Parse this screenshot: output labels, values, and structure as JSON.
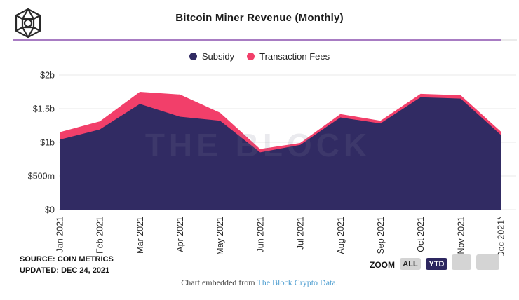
{
  "header": {
    "title": "Bitcoin Miner Revenue (Monthly)"
  },
  "legend": {
    "items": [
      {
        "label": "Subsidy",
        "color": "#312b63"
      },
      {
        "label": "Transaction Fees",
        "color": "#f23f6a"
      }
    ]
  },
  "chart_data": {
    "type": "area",
    "stacked": true,
    "title": "Bitcoin Miner Revenue (Monthly)",
    "x": [
      "Jan 2021",
      "Feb 2021",
      "Mar 2021",
      "Apr 2021",
      "May 2021",
      "Jun 2021",
      "Jul 2021",
      "Aug 2021",
      "Sep 2021",
      "Oct 2021",
      "Nov 2021",
      "Dec 2021*"
    ],
    "series": [
      {
        "name": "Subsidy",
        "color": "#312b63",
        "values_usd_billions": [
          1.04,
          1.19,
          1.57,
          1.38,
          1.32,
          0.85,
          0.96,
          1.37,
          1.28,
          1.67,
          1.65,
          1.11
        ]
      },
      {
        "name": "Transaction Fees",
        "color": "#f23f6a",
        "values_usd_billions": [
          0.11,
          0.12,
          0.18,
          0.33,
          0.12,
          0.05,
          0.03,
          0.05,
          0.04,
          0.05,
          0.05,
          0.05
        ]
      }
    ],
    "ylabel": "",
    "xlabel": "",
    "ylim": [
      0,
      2
    ],
    "yticks": [
      {
        "value": 2.0,
        "label": "$2b"
      },
      {
        "value": 1.5,
        "label": "$1.5b"
      },
      {
        "value": 1.0,
        "label": "$1b"
      },
      {
        "value": 0.5,
        "label": "$500m"
      },
      {
        "value": 0.0,
        "label": "$0"
      }
    ],
    "grid": true,
    "legend_position": "top",
    "watermark": "THE BLOCK"
  },
  "source": {
    "line1": "SOURCE: COIN METRICS",
    "line2": "UPDATED: DEC 24, 2021"
  },
  "zoom_controls": {
    "label": "ZOOM",
    "buttons": [
      {
        "label": "ALL",
        "active": false
      },
      {
        "label": "YTD",
        "active": true
      },
      {
        "label": "",
        "active": false
      },
      {
        "label": "",
        "active": false
      }
    ]
  },
  "footer": {
    "prefix": "Chart embedded from ",
    "link": "The Block Crypto Data."
  }
}
